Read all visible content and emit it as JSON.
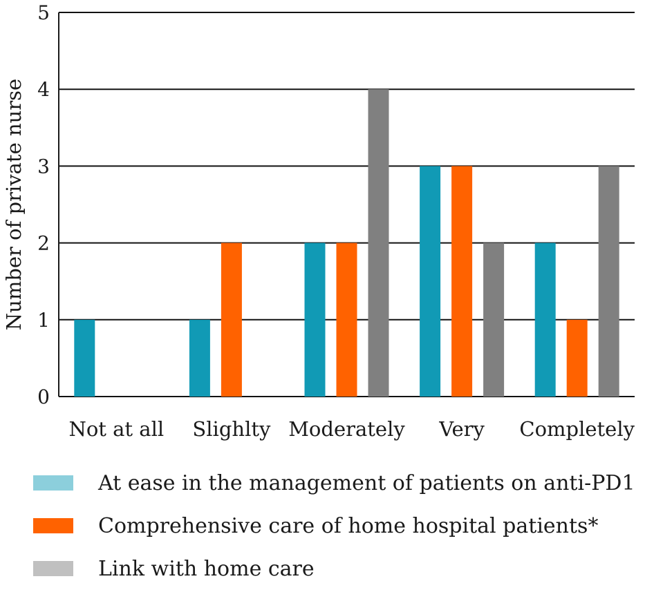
{
  "chart_data": {
    "type": "bar",
    "title": "",
    "xlabel": "",
    "ylabel": "Number of private nurse",
    "ylim": [
      0,
      5
    ],
    "yticks": [
      0,
      1,
      2,
      3,
      4,
      5
    ],
    "grid": true,
    "legend_position": "bottom",
    "categories": [
      "Not at all",
      "Slighlty",
      "Moderately",
      "Very",
      "Completely"
    ],
    "series": [
      {
        "name": "At ease in the management of patients on anti-PD1",
        "values": [
          1,
          1,
          2,
          3,
          2
        ],
        "color": "#119ab5",
        "legend_color": "#8ccfdc"
      },
      {
        "name": "Comprehensive care of home hospital patients*",
        "values": [
          0,
          2,
          2,
          3,
          1
        ],
        "color": "#ff6200",
        "legend_color": "#ff6200"
      },
      {
        "name": "Link with home care",
        "values": [
          0,
          0,
          4,
          2,
          3
        ],
        "color": "#808080",
        "legend_color": "#c0c0c0"
      }
    ]
  }
}
